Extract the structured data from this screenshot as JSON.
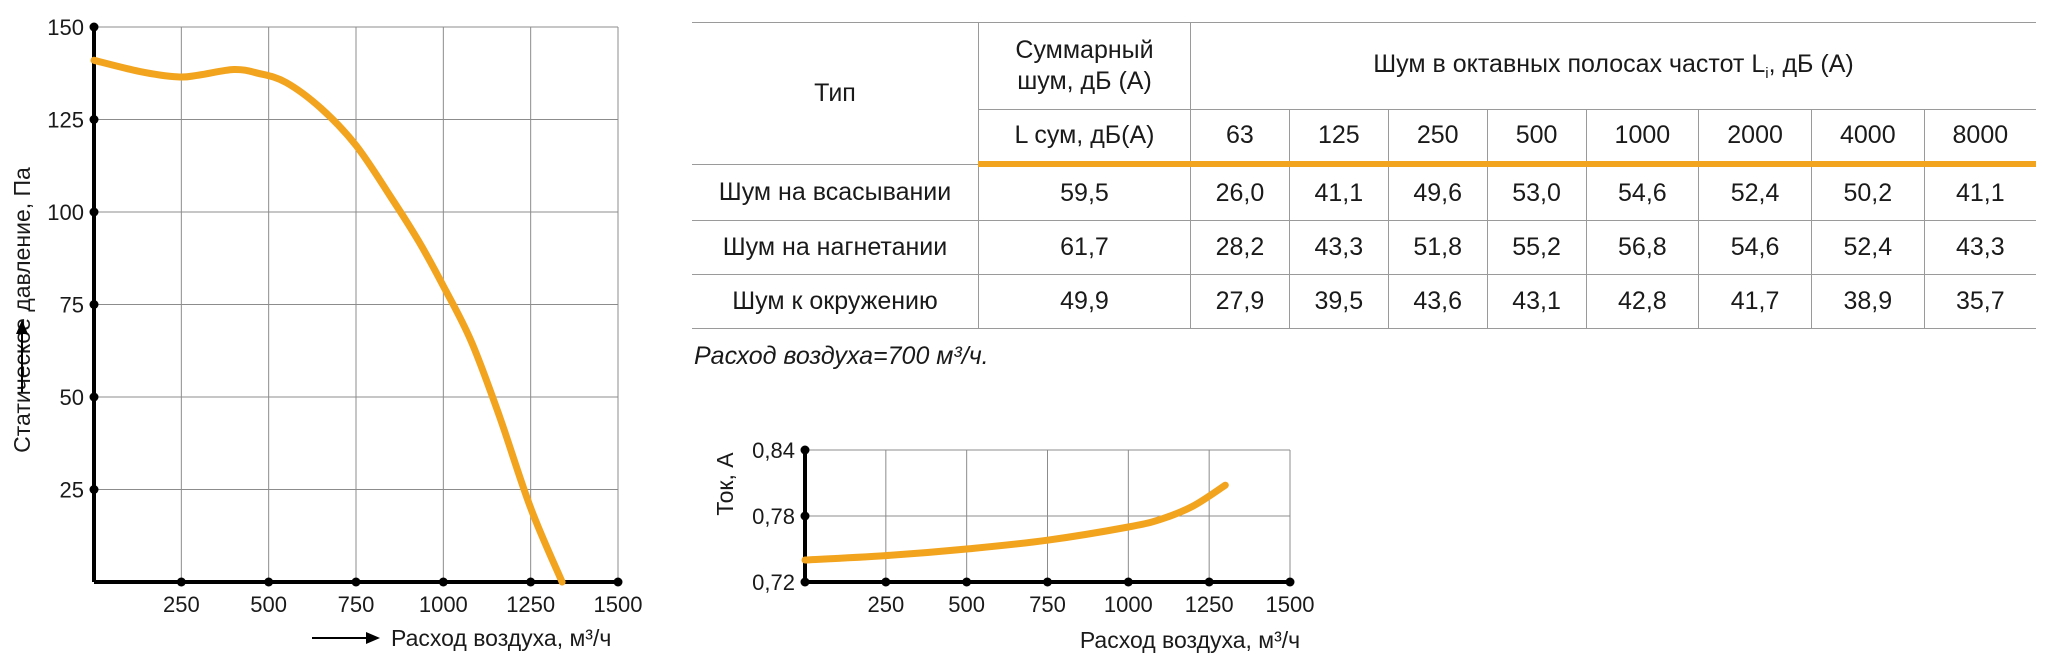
{
  "chart_data": [
    {
      "type": "line",
      "title": "",
      "xlabel": "Расход воздуха, м³/ч",
      "ylabel": "Статическое давление, Па",
      "xlim": [
        0,
        1500
      ],
      "ylim": [
        0,
        150
      ],
      "x_ticks": [
        250,
        500,
        750,
        1000,
        1250,
        1500
      ],
      "y_ticks": [
        25,
        50,
        75,
        100,
        125,
        150
      ],
      "x_tick_labels": [
        "250",
        "500",
        "750",
        "1000",
        "1250",
        "1500"
      ],
      "y_tick_labels": [
        "25",
        "50",
        "75",
        "100",
        "125",
        "150"
      ],
      "grid": true,
      "color": "#f2a41f",
      "series": [
        {
          "x": [
            0,
            130,
            240,
            300,
            400,
            470,
            550,
            650,
            750,
            850,
            930,
            1000,
            1080,
            1160,
            1250,
            1340
          ],
          "y": [
            141,
            138,
            136.5,
            137,
            138.5,
            137.5,
            135,
            128,
            118,
            104,
            92,
            80,
            65,
            45,
            20,
            0
          ]
        }
      ]
    },
    {
      "type": "line",
      "title": "",
      "xlabel": "Расход воздуха, м³/ч",
      "ylabel": "Ток, А",
      "xlim": [
        0,
        1500
      ],
      "ylim": [
        0.72,
        0.84
      ],
      "x_ticks": [
        250,
        500,
        750,
        1000,
        1250,
        1500
      ],
      "y_ticks": [
        0.72,
        0.78,
        0.84
      ],
      "x_tick_labels": [
        "250",
        "500",
        "750",
        "1000",
        "1250",
        "1500"
      ],
      "y_tick_labels": [
        "0,72",
        "0,78",
        "0,84"
      ],
      "grid": true,
      "color": "#f2a41f",
      "series": [
        {
          "x": [
            0,
            250,
            500,
            750,
            1000,
            1100,
            1200,
            1300
          ],
          "y": [
            0.74,
            0.744,
            0.75,
            0.758,
            0.77,
            0.777,
            0.789,
            0.808
          ]
        }
      ]
    }
  ],
  "table": {
    "header": {
      "type": "Тип",
      "sum_line1": "Суммарный",
      "sum_line2": "шум, дБ (А)",
      "bands_pre": "Шум в октавных полосах частот L",
      "bands_sub": "i",
      "bands_post": ", дБ (А)",
      "lsum": "L сум, дБ(А)",
      "freqs": [
        "63",
        "125",
        "250",
        "500",
        "1000",
        "2000",
        "4000",
        "8000"
      ]
    },
    "rows": [
      {
        "label": "Шум на всасывании",
        "sum": "59,5",
        "values": [
          "26,0",
          "41,1",
          "49,6",
          "53,0",
          "54,6",
          "52,4",
          "50,2",
          "41,1"
        ]
      },
      {
        "label": "Шум на нагнетании",
        "sum": "61,7",
        "values": [
          "28,2",
          "43,3",
          "51,8",
          "55,2",
          "56,8",
          "54,6",
          "52,4",
          "43,3"
        ]
      },
      {
        "label": "Шум к окружению",
        "sum": "49,9",
        "values": [
          "27,9",
          "39,5",
          "43,6",
          "43,1",
          "42,8",
          "41,7",
          "38,9",
          "35,7"
        ]
      }
    ]
  },
  "note": "Расход воздуха=700 м³/ч."
}
